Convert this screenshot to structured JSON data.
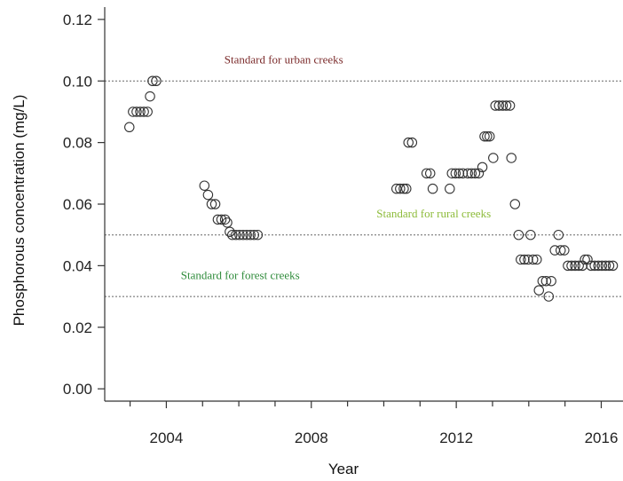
{
  "chart_data": {
    "type": "scatter",
    "xlabel": "Year",
    "ylabel": "Phosphorous concentration (mg/L)",
    "xlim": [
      2002.3,
      2016.6
    ],
    "ylim": [
      -0.004,
      0.124
    ],
    "xticks": [
      2004,
      2008,
      2012,
      2016
    ],
    "yticks": [
      0.0,
      0.02,
      0.04,
      0.06,
      0.08,
      0.1,
      0.12
    ],
    "ytick_labels": [
      "0.00",
      "0.02",
      "0.04",
      "0.06",
      "0.08",
      "0.10",
      "0.12"
    ],
    "grid": false,
    "marker": "open-circle",
    "reference_lines": [
      {
        "y": 0.1,
        "label": "Standard for urban creeks",
        "color": "#7b2b2b",
        "label_x": 2005.6,
        "label_y": 0.1057
      },
      {
        "y": 0.05,
        "label": "Standard for rural  creeks",
        "color": "#8dbb3a",
        "label_x": 2009.8,
        "label_y": 0.0557
      },
      {
        "y": 0.03,
        "label": "Standard for forest creeks",
        "color": "#2e8b3a",
        "label_x": 2004.4,
        "label_y": 0.0357
      }
    ],
    "points": [
      [
        2002.98,
        0.085
      ],
      [
        2003.08,
        0.09
      ],
      [
        2003.18,
        0.09
      ],
      [
        2003.28,
        0.09
      ],
      [
        2003.38,
        0.09
      ],
      [
        2003.48,
        0.09
      ],
      [
        2003.55,
        0.095
      ],
      [
        2003.62,
        0.1
      ],
      [
        2003.72,
        0.1
      ],
      [
        2005.05,
        0.066
      ],
      [
        2005.15,
        0.063
      ],
      [
        2005.25,
        0.06
      ],
      [
        2005.35,
        0.06
      ],
      [
        2005.42,
        0.055
      ],
      [
        2005.52,
        0.055
      ],
      [
        2005.62,
        0.055
      ],
      [
        2005.68,
        0.054
      ],
      [
        2005.75,
        0.051
      ],
      [
        2005.82,
        0.05
      ],
      [
        2005.92,
        0.05
      ],
      [
        2006.02,
        0.05
      ],
      [
        2006.12,
        0.05
      ],
      [
        2006.22,
        0.05
      ],
      [
        2006.32,
        0.05
      ],
      [
        2006.42,
        0.05
      ],
      [
        2006.52,
        0.05
      ],
      [
        2010.35,
        0.065
      ],
      [
        2010.45,
        0.065
      ],
      [
        2010.55,
        0.065
      ],
      [
        2010.62,
        0.065
      ],
      [
        2010.68,
        0.08
      ],
      [
        2010.78,
        0.08
      ],
      [
        2011.18,
        0.07
      ],
      [
        2011.28,
        0.07
      ],
      [
        2011.35,
        0.065
      ],
      [
        2011.82,
        0.065
      ],
      [
        2011.88,
        0.07
      ],
      [
        2011.98,
        0.07
      ],
      [
        2012.08,
        0.07
      ],
      [
        2012.18,
        0.07
      ],
      [
        2012.32,
        0.07
      ],
      [
        2012.42,
        0.07
      ],
      [
        2012.52,
        0.07
      ],
      [
        2012.62,
        0.07
      ],
      [
        2012.72,
        0.072
      ],
      [
        2012.78,
        0.082
      ],
      [
        2012.85,
        0.082
      ],
      [
        2012.92,
        0.082
      ],
      [
        2013.02,
        0.075
      ],
      [
        2013.08,
        0.092
      ],
      [
        2013.18,
        0.092
      ],
      [
        2013.28,
        0.092
      ],
      [
        2013.38,
        0.092
      ],
      [
        2013.48,
        0.092
      ],
      [
        2013.52,
        0.075
      ],
      [
        2013.62,
        0.06
      ],
      [
        2013.72,
        0.05
      ],
      [
        2013.78,
        0.042
      ],
      [
        2013.88,
        0.042
      ],
      [
        2013.98,
        0.042
      ],
      [
        2014.05,
        0.05
      ],
      [
        2014.12,
        0.042
      ],
      [
        2014.22,
        0.042
      ],
      [
        2014.28,
        0.032
      ],
      [
        2014.38,
        0.035
      ],
      [
        2014.48,
        0.035
      ],
      [
        2014.55,
        0.03
      ],
      [
        2014.62,
        0.035
      ],
      [
        2014.72,
        0.045
      ],
      [
        2014.82,
        0.05
      ],
      [
        2014.88,
        0.045
      ],
      [
        2014.98,
        0.045
      ],
      [
        2015.08,
        0.04
      ],
      [
        2015.18,
        0.04
      ],
      [
        2015.28,
        0.04
      ],
      [
        2015.38,
        0.04
      ],
      [
        2015.48,
        0.04
      ],
      [
        2015.55,
        0.042
      ],
      [
        2015.62,
        0.042
      ],
      [
        2015.72,
        0.04
      ],
      [
        2015.82,
        0.04
      ],
      [
        2015.92,
        0.04
      ],
      [
        2016.02,
        0.04
      ],
      [
        2016.12,
        0.04
      ],
      [
        2016.22,
        0.04
      ],
      [
        2016.32,
        0.04
      ]
    ]
  }
}
